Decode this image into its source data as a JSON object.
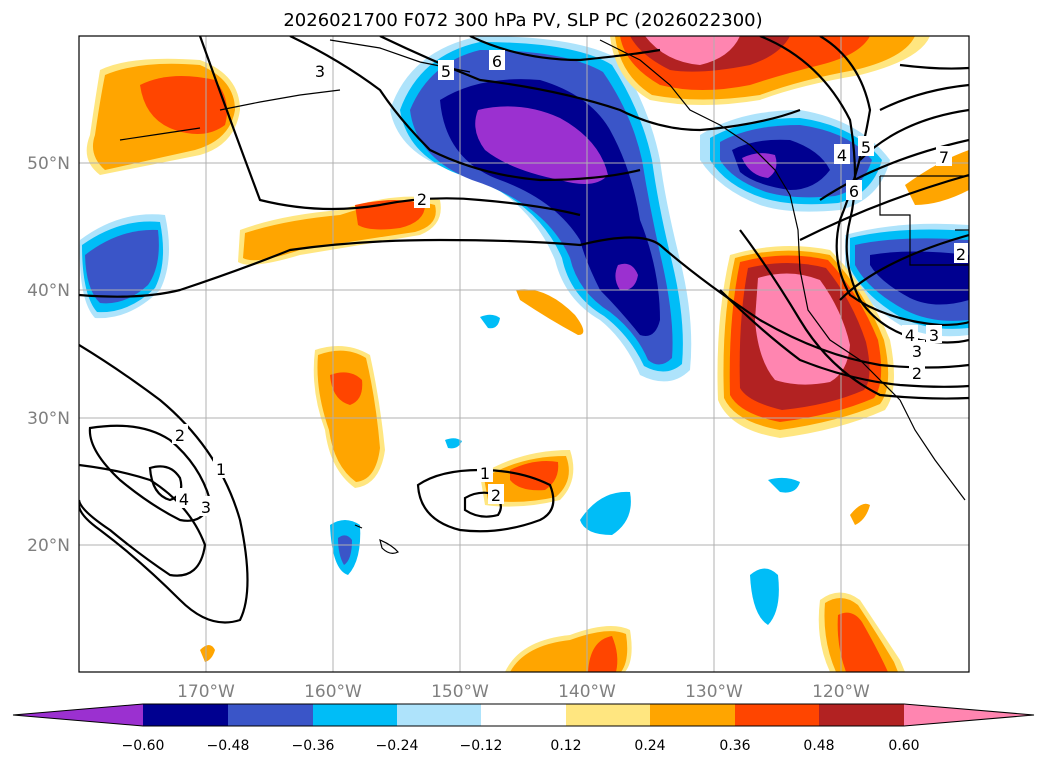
{
  "title": "2026021700 F072 300 hPa PV, SLP PC (2026022300)",
  "map": {
    "lat_labels": [
      "50°N",
      "40°N",
      "30°N",
      "20°N"
    ],
    "lon_labels": [
      "170°W",
      "160°W",
      "150°W",
      "140°W",
      "130°W",
      "120°W"
    ],
    "contour_labels": [
      "3",
      "5",
      "6",
      "7",
      "5",
      "4",
      "6",
      "2",
      "2",
      "3",
      "4",
      "3",
      "2",
      "2",
      "1",
      "4",
      "3",
      "1",
      "2"
    ]
  },
  "colorbar": {
    "ticks": [
      "−0.60",
      "−0.48",
      "−0.36",
      "−0.24",
      "−0.12",
      "0.12",
      "0.24",
      "0.36",
      "0.48",
      "0.60"
    ],
    "colors": [
      "#9b30d0",
      "#000090",
      "#3a55c8",
      "#00bdf7",
      "#aee3fb",
      "#ffffff",
      "#ffe680",
      "#ffa500",
      "#ff4500",
      "#b22222",
      "#ff85b0",
      "#ff85b0"
    ]
  }
}
